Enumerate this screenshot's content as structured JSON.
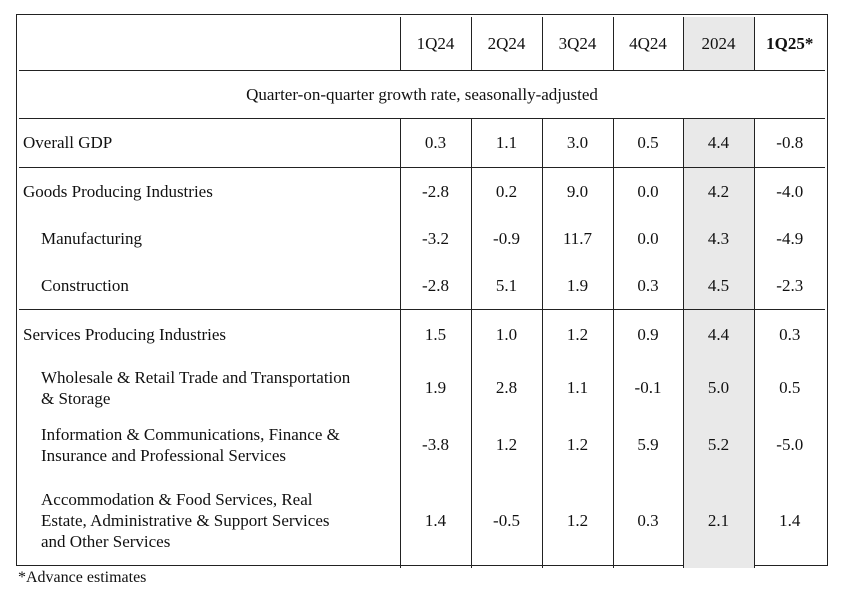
{
  "columns": [
    "1Q24",
    "2Q24",
    "3Q24",
    "4Q24",
    "2024",
    "1Q25*"
  ],
  "subtitle": "Quarter-on-quarter growth rate, seasonally-adjusted",
  "rows": [
    {
      "label": "Overall GDP",
      "values": [
        "0.3",
        "1.1",
        "3.0",
        "0.5",
        "4.4",
        "-0.8"
      ]
    },
    {
      "label": "Goods Producing Industries",
      "values": [
        "-2.8",
        "0.2",
        "9.0",
        "0.0",
        "4.2",
        "-4.0"
      ]
    },
    {
      "label": "Manufacturing",
      "values": [
        "-3.2",
        "-0.9",
        "11.7",
        "0.0",
        "4.3",
        "-4.9"
      ]
    },
    {
      "label": "Construction",
      "values": [
        "-2.8",
        "5.1",
        "1.9",
        "0.3",
        "4.5",
        "-2.3"
      ]
    },
    {
      "label": "Services Producing Industries",
      "values": [
        "1.5",
        "1.0",
        "1.2",
        "0.9",
        "4.4",
        "0.3"
      ]
    },
    {
      "label_lines": [
        "Wholesale & Retail Trade and Transportation",
        "& Storage"
      ],
      "values": [
        "1.9",
        "2.8",
        "1.1",
        "-0.1",
        "5.0",
        "0.5"
      ]
    },
    {
      "label_lines": [
        "Information & Communications, Finance &",
        "Insurance and Professional Services"
      ],
      "values": [
        "-3.8",
        "1.2",
        "1.2",
        "5.9",
        "5.2",
        "-5.0"
      ]
    },
    {
      "label_lines": [
        "Accommodation & Food Services, Real",
        "Estate, Administrative & Support Services",
        "and Other Services"
      ],
      "values": [
        "1.4",
        "-0.5",
        "1.2",
        "0.3",
        "2.1",
        "1.4"
      ]
    }
  ],
  "footnote": "*Advance estimates",
  "colors": {
    "shade": "#e9e9e9",
    "border": "#222222"
  }
}
